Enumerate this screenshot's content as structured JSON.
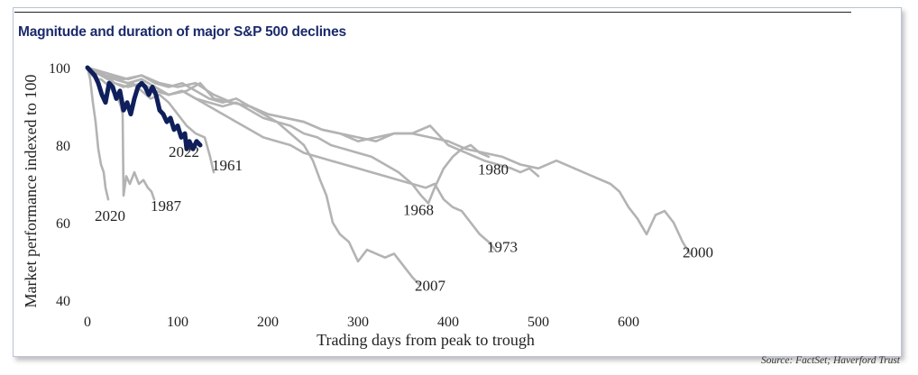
{
  "title": "Magnitude and duration of major S&P 500 declines",
  "source": "Source: FactSet; Haverford Trust",
  "chart_data": {
    "type": "line",
    "title": "Magnitude and duration of major S&P 500 declines",
    "xlabel": "Trading days from peak to trough",
    "ylabel": "Market performance indexed to 100",
    "xlim": [
      0,
      700
    ],
    "ylim": [
      40,
      100
    ],
    "xticks": [
      0,
      100,
      200,
      300,
      400,
      500,
      600
    ],
    "yticks": [
      40,
      60,
      80,
      100
    ],
    "grid": false,
    "legend": "none",
    "colors": {
      "highlight": "#0f1f5c",
      "others": "#b3b3b3"
    },
    "series": [
      {
        "name": "2020",
        "highlight": false,
        "label_at": [
          25,
          60.5
        ],
        "points": [
          [
            0,
            100
          ],
          [
            3,
            97
          ],
          [
            6,
            91
          ],
          [
            9,
            86
          ],
          [
            12,
            79
          ],
          [
            15,
            75
          ],
          [
            18,
            73
          ],
          [
            20,
            69
          ],
          [
            23,
            66
          ]
        ]
      },
      {
        "name": "1987",
        "highlight": false,
        "label_at": [
          87,
          63
        ],
        "points": [
          [
            0,
            100
          ],
          [
            5,
            98
          ],
          [
            10,
            97
          ],
          [
            15,
            97
          ],
          [
            20,
            96
          ],
          [
            25,
            95
          ],
          [
            30,
            93
          ],
          [
            34,
            92
          ],
          [
            37,
            90
          ],
          [
            39,
            88
          ],
          [
            40,
            67
          ],
          [
            43,
            72
          ],
          [
            47,
            70
          ],
          [
            52,
            73
          ],
          [
            57,
            70
          ],
          [
            62,
            71
          ],
          [
            67,
            69
          ],
          [
            71,
            68
          ],
          [
            74,
            66
          ]
        ]
      },
      {
        "name": "2022",
        "highlight": true,
        "label_at": [
          107,
          77
        ],
        "points": [
          [
            0,
            100
          ],
          [
            4,
            99
          ],
          [
            8,
            98
          ],
          [
            12,
            96
          ],
          [
            16,
            93
          ],
          [
            20,
            91
          ],
          [
            24,
            96
          ],
          [
            28,
            95
          ],
          [
            32,
            92
          ],
          [
            36,
            94
          ],
          [
            40,
            89
          ],
          [
            44,
            91
          ],
          [
            48,
            88
          ],
          [
            52,
            92
          ],
          [
            56,
            95
          ],
          [
            60,
            96
          ],
          [
            64,
            95
          ],
          [
            68,
            93
          ],
          [
            72,
            95
          ],
          [
            76,
            93
          ],
          [
            80,
            89
          ],
          [
            84,
            88
          ],
          [
            88,
            86
          ],
          [
            92,
            87
          ],
          [
            96,
            84
          ],
          [
            100,
            85
          ],
          [
            104,
            82
          ],
          [
            108,
            83
          ],
          [
            110,
            79
          ],
          [
            113,
            81
          ],
          [
            117,
            79
          ],
          [
            121,
            81
          ],
          [
            125,
            80
          ]
        ]
      },
      {
        "name": "1961",
        "highlight": false,
        "label_at": [
          155,
          73.5
        ],
        "points": [
          [
            0,
            100
          ],
          [
            10,
            99
          ],
          [
            20,
            98
          ],
          [
            30,
            96
          ],
          [
            40,
            95
          ],
          [
            50,
            96
          ],
          [
            60,
            94
          ],
          [
            70,
            92
          ],
          [
            80,
            93
          ],
          [
            90,
            91
          ],
          [
            100,
            88
          ],
          [
            110,
            85
          ],
          [
            120,
            83
          ],
          [
            130,
            82
          ],
          [
            136,
            77
          ],
          [
            140,
            73
          ]
        ]
      },
      {
        "name": "1980",
        "highlight": false,
        "label_at": [
          450,
          72.5
        ],
        "points": [
          [
            0,
            100
          ],
          [
            15,
            98
          ],
          [
            30,
            97
          ],
          [
            45,
            96
          ],
          [
            60,
            97
          ],
          [
            75,
            95
          ],
          [
            90,
            93
          ],
          [
            110,
            94
          ],
          [
            125,
            96
          ],
          [
            140,
            92
          ],
          [
            160,
            91
          ],
          [
            180,
            90
          ],
          [
            200,
            88
          ],
          [
            220,
            87
          ],
          [
            240,
            86
          ],
          [
            260,
            84
          ],
          [
            280,
            83
          ],
          [
            300,
            81
          ],
          [
            320,
            82
          ],
          [
            340,
            83
          ],
          [
            360,
            83
          ],
          [
            380,
            85
          ],
          [
            400,
            80
          ],
          [
            420,
            78
          ],
          [
            440,
            76
          ],
          [
            455,
            75
          ],
          [
            470,
            74
          ],
          [
            480,
            73
          ],
          [
            490,
            74
          ],
          [
            500,
            72
          ]
        ]
      },
      {
        "name": "1968",
        "highlight": false,
        "label_at": [
          367,
          62
        ],
        "points": [
          [
            0,
            100
          ],
          [
            15,
            99
          ],
          [
            30,
            98
          ],
          [
            45,
            97
          ],
          [
            60,
            98
          ],
          [
            75,
            96
          ],
          [
            90,
            95
          ],
          [
            105,
            96
          ],
          [
            120,
            94
          ],
          [
            135,
            92
          ],
          [
            150,
            91
          ],
          [
            165,
            92
          ],
          [
            180,
            90
          ],
          [
            195,
            88
          ],
          [
            210,
            86
          ],
          [
            225,
            85
          ],
          [
            240,
            83
          ],
          [
            255,
            82
          ],
          [
            270,
            80
          ],
          [
            285,
            79
          ],
          [
            300,
            78
          ],
          [
            315,
            77
          ],
          [
            330,
            75
          ],
          [
            345,
            73
          ],
          [
            360,
            70
          ],
          [
            370,
            67
          ],
          [
            378,
            65
          ],
          [
            385,
            69
          ],
          [
            395,
            74
          ],
          [
            405,
            77
          ],
          [
            415,
            79
          ],
          [
            425,
            80
          ],
          [
            435,
            78
          ],
          [
            445,
            77
          ]
        ]
      },
      {
        "name": "1973",
        "highlight": false,
        "label_at": [
          460,
          52.5
        ],
        "points": [
          [
            0,
            100
          ],
          [
            15,
            98
          ],
          [
            30,
            96
          ],
          [
            45,
            95
          ],
          [
            60,
            96
          ],
          [
            75,
            94
          ],
          [
            90,
            93
          ],
          [
            105,
            94
          ],
          [
            120,
            92
          ],
          [
            135,
            90
          ],
          [
            150,
            88
          ],
          [
            165,
            86
          ],
          [
            180,
            84
          ],
          [
            195,
            82
          ],
          [
            210,
            81
          ],
          [
            225,
            80
          ],
          [
            240,
            78
          ],
          [
            255,
            77
          ],
          [
            270,
            76
          ],
          [
            285,
            75
          ],
          [
            300,
            74
          ],
          [
            315,
            73
          ],
          [
            330,
            72
          ],
          [
            345,
            71
          ],
          [
            360,
            70
          ],
          [
            375,
            69
          ],
          [
            385,
            70
          ],
          [
            395,
            66
          ],
          [
            405,
            64
          ],
          [
            415,
            63
          ],
          [
            425,
            60
          ],
          [
            435,
            57
          ],
          [
            445,
            55
          ],
          [
            452,
            53
          ]
        ]
      },
      {
        "name": "2007",
        "highlight": false,
        "label_at": [
          380,
          42.5
        ],
        "points": [
          [
            0,
            100
          ],
          [
            15,
            98
          ],
          [
            30,
            97
          ],
          [
            45,
            96
          ],
          [
            60,
            97
          ],
          [
            75,
            95
          ],
          [
            90,
            93
          ],
          [
            105,
            94
          ],
          [
            120,
            92
          ],
          [
            135,
            91
          ],
          [
            150,
            90
          ],
          [
            165,
            91
          ],
          [
            180,
            89
          ],
          [
            195,
            87
          ],
          [
            210,
            86
          ],
          [
            225,
            83
          ],
          [
            240,
            80
          ],
          [
            250,
            76
          ],
          [
            258,
            71
          ],
          [
            265,
            67
          ],
          [
            272,
            60
          ],
          [
            280,
            57
          ],
          [
            290,
            55
          ],
          [
            300,
            50
          ],
          [
            310,
            53
          ],
          [
            320,
            52
          ],
          [
            330,
            51
          ],
          [
            340,
            52
          ],
          [
            350,
            49
          ],
          [
            360,
            46
          ],
          [
            368,
            44
          ]
        ]
      },
      {
        "name": "2000",
        "highlight": false,
        "label_at": [
          677,
          51
        ],
        "points": [
          [
            0,
            100
          ],
          [
            20,
            98
          ],
          [
            40,
            97
          ],
          [
            60,
            98
          ],
          [
            80,
            96
          ],
          [
            100,
            95
          ],
          [
            120,
            96
          ],
          [
            140,
            93
          ],
          [
            160,
            91
          ],
          [
            180,
            90
          ],
          [
            200,
            88
          ],
          [
            220,
            87
          ],
          [
            240,
            86
          ],
          [
            260,
            84
          ],
          [
            280,
            83
          ],
          [
            300,
            82
          ],
          [
            320,
            81
          ],
          [
            340,
            83
          ],
          [
            360,
            83
          ],
          [
            380,
            82
          ],
          [
            400,
            81
          ],
          [
            420,
            79
          ],
          [
            440,
            78
          ],
          [
            460,
            77
          ],
          [
            480,
            75
          ],
          [
            500,
            74
          ],
          [
            520,
            76
          ],
          [
            540,
            74
          ],
          [
            560,
            72
          ],
          [
            580,
            70
          ],
          [
            590,
            68
          ],
          [
            600,
            64
          ],
          [
            610,
            61
          ],
          [
            620,
            57
          ],
          [
            630,
            62
          ],
          [
            640,
            63
          ],
          [
            650,
            60
          ],
          [
            660,
            55
          ],
          [
            668,
            52
          ]
        ]
      }
    ]
  }
}
